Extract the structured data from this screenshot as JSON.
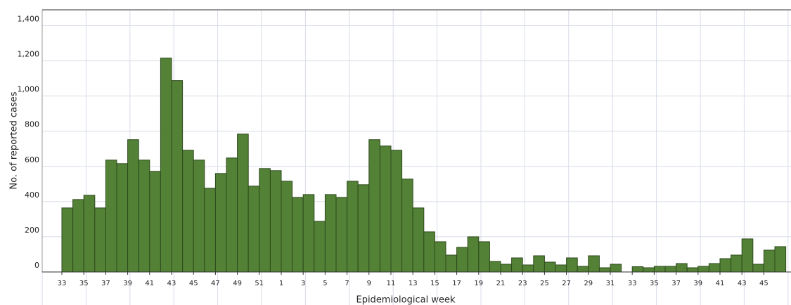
{
  "chart_data": {
    "type": "bar",
    "x_label": "Epidemiological week",
    "y_label": "No. of reported cases",
    "categories": [
      "33",
      null,
      "35",
      null,
      "37",
      null,
      "39",
      null,
      "41",
      null,
      "43",
      null,
      "45",
      null,
      "47",
      null,
      "49",
      null,
      "51",
      null,
      "1",
      null,
      "3",
      null,
      "5",
      null,
      "7",
      null,
      "9",
      null,
      "11",
      null,
      "13",
      null,
      "15",
      null,
      "17",
      null,
      "19",
      null,
      "21",
      null,
      "23",
      null,
      "25",
      null,
      "27",
      null,
      "29",
      null,
      "31",
      null,
      "33",
      null,
      "35",
      null,
      "37",
      null,
      "39",
      null,
      "41",
      null,
      "43",
      null,
      "45",
      null
    ],
    "values": [
      364,
      412,
      436,
      364,
      636,
      616,
      752,
      636,
      572,
      1216,
      1088,
      692,
      636,
      476,
      560,
      648,
      784,
      488,
      588,
      576,
      516,
      424,
      440,
      288,
      440,
      424,
      516,
      496,
      752,
      716,
      692,
      528,
      364,
      228,
      172,
      96,
      140,
      200,
      172,
      60,
      44,
      80,
      40,
      92,
      56,
      40,
      80,
      32,
      92,
      24,
      44,
      0,
      30,
      24,
      32,
      32,
      48,
      24,
      32,
      48,
      76,
      96,
      188,
      44,
      124,
      144
    ],
    "color": "#538135",
    "ylim": [
      0,
      1490
    ],
    "yticks": [
      0,
      200,
      400,
      600,
      800,
      {
        "value": 1000,
        "label": "1,000"
      },
      {
        "value": 1200,
        "label": "1,200"
      },
      {
        "value": 1400,
        "label": "1,400"
      }
    ],
    "grid": true
  }
}
